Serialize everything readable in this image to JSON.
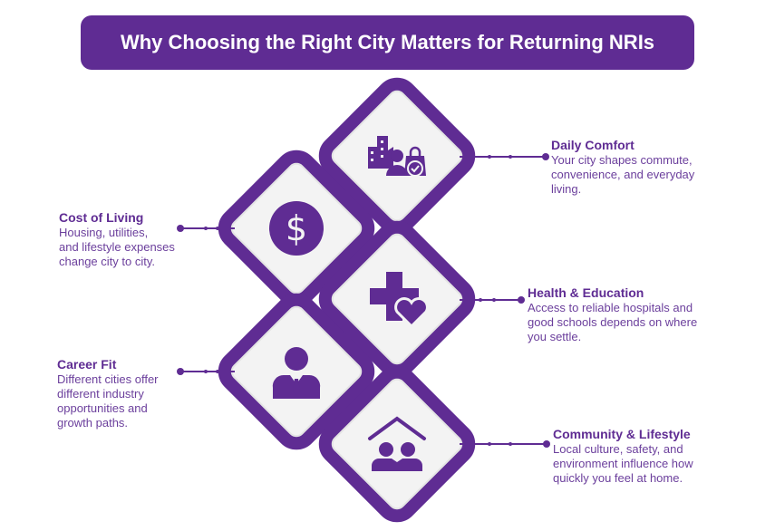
{
  "title": "Why Choosing the Right City Matters for Returning NRIs",
  "colors": {
    "primary": "#5f2c93",
    "text": "#6b3f9c",
    "tile": "#f3f3f3"
  },
  "items": [
    {
      "title": "Daily Comfort",
      "body": "Your city shapes commute,\nconvenience, and everyday\nliving.",
      "icon": "city-person-shopping-bag-icon"
    },
    {
      "title": "Cost of Living",
      "body": "Housing, utilities,\nand lifestyle expenses\nchange city to city.",
      "icon": "dollar-coin-icon"
    },
    {
      "title": "Health & Education",
      "body": "Access to reliable hospitals and\ngood schools depends on where\nyou settle.",
      "icon": "medical-cross-heart-icon"
    },
    {
      "title": "Career Fit",
      "body": "Different cities offer\ndifferent industry\nopportunities and\ngrowth paths.",
      "icon": "businessman-icon"
    },
    {
      "title": "Community & Lifestyle",
      "body": "Local culture, safety, and\nenvironment influence how\nquickly you feel at home.",
      "icon": "home-people-icon"
    }
  ]
}
